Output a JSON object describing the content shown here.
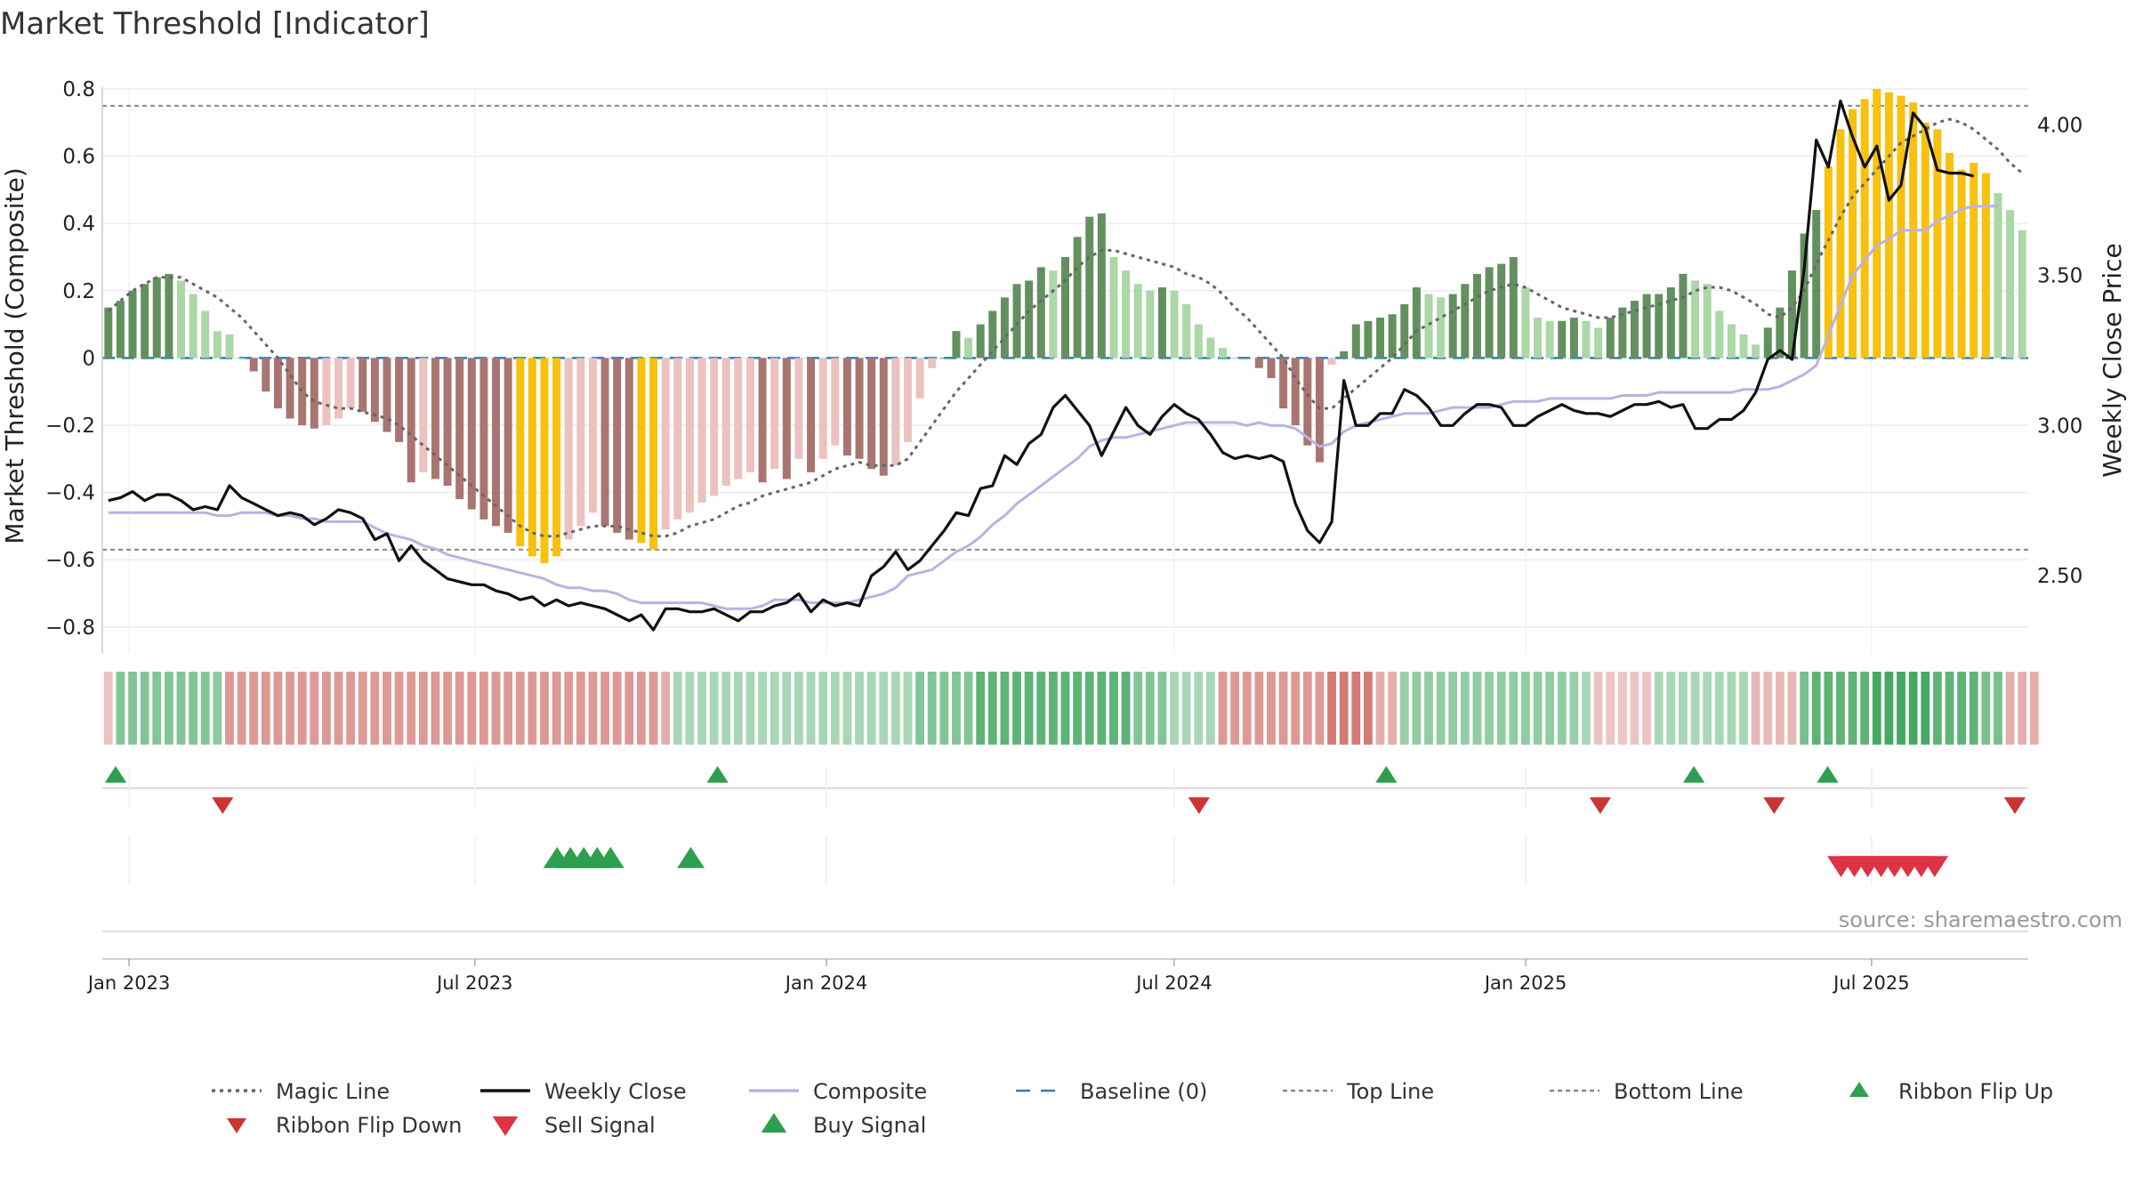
{
  "chart_data": {
    "type": "bar",
    "title": "Market Threshold [Indicator]",
    "ylabel": "Market Threshold (Composite)",
    "y2label": "Weekly Close Price",
    "ylim": [
      -0.88,
      0.8
    ],
    "y2lim": [
      2.24,
      4.12
    ],
    "yticks": [
      -0.8,
      -0.6,
      -0.4,
      -0.2,
      0,
      0.2,
      0.4,
      0.6,
      0.8
    ],
    "ytick_labels": [
      "−0.8",
      "−0.6",
      "−0.4",
      "−0.2",
      "0",
      "0.2",
      "0.4",
      "0.6",
      "0.8"
    ],
    "y2ticks": [
      2.5,
      3.0,
      3.5,
      4.0
    ],
    "y2tick_labels": [
      "2.50",
      "3.00",
      "3.50",
      "4.00"
    ],
    "x_start": "2022-12-18",
    "x_end": "2025-09-21",
    "xticks": [
      "2023-01-01",
      "2023-07-01",
      "2024-01-01",
      "2024-07-01",
      "2025-01-01",
      "2025-07-01"
    ],
    "xtick_labels": [
      "Jan 2023",
      "Jul 2023",
      "Jan 2024",
      "Jul 2024",
      "Jan 2025",
      "Jul 2025"
    ],
    "top_line": 0.75,
    "bottom_line": -0.57,
    "baseline": 0,
    "grid": true,
    "legend_position": "bottom",
    "composite_bars": [
      0.15,
      0.17,
      0.2,
      0.22,
      0.24,
      0.25,
      0.23,
      0.19,
      0.14,
      0.08,
      0.07,
      0.0,
      -0.04,
      -0.1,
      -0.15,
      -0.18,
      -0.2,
      -0.21,
      -0.2,
      -0.18,
      -0.15,
      -0.16,
      -0.19,
      -0.22,
      -0.25,
      -0.37,
      -0.34,
      -0.36,
      -0.38,
      -0.42,
      -0.45,
      -0.48,
      -0.5,
      -0.52,
      -0.56,
      -0.59,
      -0.61,
      -0.59,
      -0.54,
      -0.5,
      -0.46,
      -0.5,
      -0.52,
      -0.54,
      -0.55,
      -0.57,
      -0.51,
      -0.48,
      -0.46,
      -0.43,
      -0.41,
      -0.38,
      -0.36,
      -0.34,
      -0.37,
      -0.33,
      -0.36,
      -0.3,
      -0.34,
      -0.3,
      -0.26,
      -0.29,
      -0.3,
      -0.33,
      -0.35,
      -0.32,
      -0.25,
      -0.12,
      -0.03,
      0.0,
      0.08,
      0.06,
      0.1,
      0.14,
      0.18,
      0.22,
      0.23,
      0.27,
      0.26,
      0.3,
      0.36,
      0.42,
      0.43,
      0.3,
      0.26,
      0.22,
      0.2,
      0.21,
      0.2,
      0.16,
      0.1,
      0.06,
      0.03,
      0.0,
      0.0,
      -0.03,
      -0.06,
      -0.15,
      -0.2,
      -0.26,
      -0.31,
      -0.02,
      0.02,
      0.1,
      0.11,
      0.12,
      0.13,
      0.16,
      0.21,
      0.19,
      0.18,
      0.19,
      0.22,
      0.25,
      0.27,
      0.28,
      0.3,
      0.21,
      0.12,
      0.11,
      0.11,
      0.12,
      0.11,
      0.09,
      0.12,
      0.15,
      0.17,
      0.19,
      0.19,
      0.21,
      0.25,
      0.23,
      0.22,
      0.14,
      0.1,
      0.07,
      0.04,
      0.09,
      0.15,
      0.26,
      0.37,
      0.44,
      0.57,
      0.68,
      0.74,
      0.77,
      0.8,
      0.79,
      0.78,
      0.76,
      0.7,
      0.68,
      0.61,
      0.56,
      0.58,
      0.55,
      0.49,
      0.44,
      0.38
    ],
    "weekly_close": [
      2.75,
      2.76,
      2.78,
      2.75,
      2.77,
      2.77,
      2.75,
      2.72,
      2.73,
      2.72,
      2.8,
      2.76,
      2.74,
      2.72,
      2.7,
      2.71,
      2.7,
      2.67,
      2.69,
      2.72,
      2.71,
      2.69,
      2.62,
      2.64,
      2.55,
      2.6,
      2.55,
      2.52,
      2.49,
      2.48,
      2.47,
      2.47,
      2.45,
      2.44,
      2.42,
      2.43,
      2.4,
      2.42,
      2.4,
      2.41,
      2.4,
      2.39,
      2.37,
      2.35,
      2.37,
      2.32,
      2.39,
      2.39,
      2.38,
      2.38,
      2.39,
      2.37,
      2.35,
      2.38,
      2.38,
      2.4,
      2.41,
      2.44,
      2.38,
      2.42,
      2.4,
      2.41,
      2.4,
      2.5,
      2.53,
      2.58,
      2.52,
      2.55,
      2.6,
      2.65,
      2.71,
      2.7,
      2.79,
      2.8,
      2.9,
      2.87,
      2.94,
      2.97,
      3.06,
      3.1,
      3.05,
      3.0,
      2.9,
      2.98,
      3.06,
      3.0,
      2.97,
      3.03,
      3.07,
      3.04,
      3.02,
      2.97,
      2.91,
      2.89,
      2.9,
      2.89,
      2.9,
      2.88,
      2.74,
      2.65,
      2.61,
      2.68,
      3.15,
      3.0,
      3.0,
      3.04,
      3.04,
      3.12,
      3.1,
      3.06,
      3.0,
      3.0,
      3.04,
      3.07,
      3.07,
      3.06,
      3.0,
      3.0,
      3.03,
      3.05,
      3.07,
      3.05,
      3.04,
      3.04,
      3.03,
      3.05,
      3.07,
      3.07,
      3.08,
      3.06,
      3.07,
      2.99,
      2.99,
      3.02,
      3.02,
      3.05,
      3.11,
      3.22,
      3.25,
      3.22,
      3.52,
      3.95,
      3.86,
      4.08,
      3.96,
      3.86,
      3.93,
      3.75,
      3.8,
      4.04,
      3.99,
      3.85,
      3.84,
      3.84,
      3.83
    ],
    "composite_line": [
      2.71,
      2.71,
      2.71,
      2.71,
      2.71,
      2.71,
      2.71,
      2.71,
      2.71,
      2.7,
      2.7,
      2.71,
      2.71,
      2.71,
      2.7,
      2.7,
      2.69,
      2.69,
      2.68,
      2.68,
      2.68,
      2.68,
      2.66,
      2.64,
      2.63,
      2.62,
      2.6,
      2.59,
      2.57,
      2.56,
      2.55,
      2.54,
      2.53,
      2.52,
      2.51,
      2.5,
      2.49,
      2.47,
      2.46,
      2.46,
      2.45,
      2.45,
      2.44,
      2.42,
      2.41,
      2.41,
      2.41,
      2.41,
      2.41,
      2.41,
      2.4,
      2.39,
      2.39,
      2.39,
      2.4,
      2.42,
      2.42,
      2.42,
      2.41,
      2.41,
      2.41,
      2.41,
      2.42,
      2.43,
      2.44,
      2.46,
      2.5,
      2.51,
      2.52,
      2.55,
      2.58,
      2.6,
      2.63,
      2.67,
      2.7,
      2.74,
      2.77,
      2.8,
      2.83,
      2.86,
      2.89,
      2.93,
      2.95,
      2.96,
      2.96,
      2.97,
      2.98,
      2.99,
      3.0,
      3.01,
      3.01,
      3.01,
      3.01,
      3.01,
      3.0,
      3.01,
      3.0,
      3.0,
      2.99,
      2.96,
      2.93,
      2.94,
      2.98,
      3.0,
      3.01,
      3.02,
      3.03,
      3.04,
      3.04,
      3.04,
      3.05,
      3.06,
      3.06,
      3.06,
      3.06,
      3.07,
      3.08,
      3.08,
      3.08,
      3.09,
      3.09,
      3.09,
      3.09,
      3.09,
      3.09,
      3.1,
      3.1,
      3.1,
      3.11,
      3.11,
      3.11,
      3.11,
      3.11,
      3.11,
      3.11,
      3.12,
      3.12,
      3.12,
      3.13,
      3.15,
      3.17,
      3.2,
      3.3,
      3.4,
      3.5,
      3.55,
      3.6,
      3.62,
      3.65,
      3.65,
      3.65,
      3.68,
      3.7,
      3.72,
      3.73,
      3.73,
      3.73
    ],
    "magic_line": [
      0.14,
      0.17,
      0.2,
      0.22,
      0.24,
      0.24,
      0.24,
      0.22,
      0.2,
      0.18,
      0.15,
      0.12,
      0.08,
      0.04,
      0.0,
      -0.05,
      -0.1,
      -0.13,
      -0.14,
      -0.15,
      -0.15,
      -0.16,
      -0.17,
      -0.18,
      -0.2,
      -0.23,
      -0.26,
      -0.29,
      -0.32,
      -0.35,
      -0.38,
      -0.41,
      -0.44,
      -0.47,
      -0.5,
      -0.52,
      -0.53,
      -0.53,
      -0.52,
      -0.51,
      -0.5,
      -0.5,
      -0.5,
      -0.51,
      -0.52,
      -0.53,
      -0.53,
      -0.52,
      -0.5,
      -0.49,
      -0.48,
      -0.46,
      -0.44,
      -0.43,
      -0.41,
      -0.4,
      -0.39,
      -0.38,
      -0.37,
      -0.35,
      -0.33,
      -0.32,
      -0.31,
      -0.32,
      -0.32,
      -0.32,
      -0.3,
      -0.25,
      -0.2,
      -0.15,
      -0.1,
      -0.06,
      -0.02,
      0.02,
      0.06,
      0.1,
      0.14,
      0.17,
      0.2,
      0.23,
      0.27,
      0.3,
      0.32,
      0.32,
      0.31,
      0.3,
      0.29,
      0.28,
      0.27,
      0.25,
      0.24,
      0.22,
      0.19,
      0.15,
      0.12,
      0.08,
      0.04,
      0.0,
      -0.06,
      -0.11,
      -0.15,
      -0.15,
      -0.12,
      -0.09,
      -0.06,
      -0.03,
      0.0,
      0.04,
      0.08,
      0.1,
      0.12,
      0.14,
      0.16,
      0.18,
      0.2,
      0.21,
      0.22,
      0.21,
      0.19,
      0.17,
      0.15,
      0.14,
      0.13,
      0.12,
      0.12,
      0.13,
      0.14,
      0.15,
      0.16,
      0.17,
      0.18,
      0.2,
      0.21,
      0.21,
      0.2,
      0.18,
      0.16,
      0.13,
      0.12,
      0.15,
      0.2,
      0.28,
      0.35,
      0.42,
      0.48,
      0.52,
      0.56,
      0.6,
      0.64,
      0.66,
      0.68,
      0.7,
      0.71,
      0.7,
      0.68,
      0.65,
      0.62,
      0.58,
      0.55
    ],
    "ribbon": [
      -0.22,
      0.55,
      0.55,
      0.55,
      0.55,
      0.55,
      0.55,
      0.55,
      0.55,
      0.48,
      -0.55,
      -0.55,
      -0.55,
      -0.55,
      -0.55,
      -0.55,
      -0.55,
      -0.55,
      -0.55,
      -0.55,
      -0.55,
      -0.55,
      -0.55,
      -0.55,
      -0.55,
      -0.55,
      -0.55,
      -0.55,
      -0.55,
      -0.55,
      -0.55,
      -0.55,
      -0.55,
      -0.55,
      -0.55,
      -0.55,
      -0.55,
      -0.55,
      -0.55,
      -0.55,
      -0.55,
      -0.55,
      -0.55,
      -0.55,
      -0.55,
      -0.55,
      -0.38,
      0.3,
      0.3,
      0.3,
      0.3,
      0.3,
      0.3,
      0.3,
      0.3,
      0.3,
      0.3,
      0.3,
      0.3,
      0.3,
      0.3,
      0.3,
      0.3,
      0.3,
      0.3,
      0.3,
      0.3,
      0.55,
      0.55,
      0.55,
      0.55,
      0.55,
      0.8,
      0.8,
      0.8,
      0.8,
      0.8,
      0.8,
      0.8,
      0.8,
      0.8,
      0.8,
      0.8,
      0.8,
      0.8,
      0.55,
      0.55,
      0.55,
      0.3,
      0.3,
      0.3,
      0.3,
      -0.55,
      -0.55,
      -0.55,
      -0.55,
      -0.55,
      -0.55,
      -0.55,
      -0.55,
      -0.55,
      -0.8,
      -0.8,
      -0.8,
      -0.8,
      -0.38,
      -0.38,
      0.4,
      0.45,
      0.45,
      0.45,
      0.45,
      0.45,
      0.45,
      0.45,
      0.45,
      0.45,
      0.45,
      0.45,
      0.45,
      0.45,
      0.4,
      0.3,
      -0.2,
      -0.2,
      -0.2,
      -0.2,
      -0.2,
      0.3,
      0.3,
      0.3,
      0.3,
      0.3,
      0.3,
      0.3,
      0.3,
      -0.3,
      -0.3,
      -0.3,
      -0.3,
      0.62,
      0.8,
      0.8,
      0.8,
      0.8,
      0.8,
      0.95,
      0.95,
      0.95,
      0.95,
      0.95,
      0.8,
      0.8,
      0.8,
      0.8,
      0.62,
      0.62,
      -0.38,
      -0.38,
      -0.38
    ],
    "ribbon_flip_up": [
      "2022-12-25",
      "2023-11-05",
      "2024-10-20",
      "2025-03-30",
      "2025-06-08"
    ],
    "ribbon_flip_down": [
      "2023-02-19",
      "2024-07-14",
      "2025-02-09",
      "2025-05-11",
      "2025-09-14"
    ],
    "buy_signal": [
      "2023-08-13",
      "2023-08-20",
      "2023-08-27",
      "2023-09-03",
      "2023-09-10",
      "2023-10-22"
    ],
    "sell_signal": [
      "2025-06-15",
      "2025-06-22",
      "2025-06-29",
      "2025-07-06",
      "2025-07-13",
      "2025-07-20",
      "2025-07-27",
      "2025-08-03"
    ],
    "series": [
      {
        "name": "Magic Line",
        "color": "#666666",
        "style": "dotted"
      },
      {
        "name": "Weekly Close",
        "color": "#111111",
        "style": "solid"
      },
      {
        "name": "Composite",
        "color": "#b9b3e3",
        "style": "solid"
      },
      {
        "name": "Baseline (0)",
        "color": "#2f7fb0",
        "style": "dashed"
      },
      {
        "name": "Top Line",
        "color": "#888888",
        "style": "dashed"
      },
      {
        "name": "Bottom Line",
        "color": "#888888",
        "style": "dashed"
      },
      {
        "name": "Ribbon Flip Up",
        "color": "#2e9e4f",
        "style": "marker-up"
      },
      {
        "name": "Ribbon Flip Down",
        "color": "#cc3333",
        "style": "marker-down"
      },
      {
        "name": "Sell Signal",
        "color": "#dd3344",
        "style": "marker-down"
      },
      {
        "name": "Buy Signal",
        "color": "#2e9e4f",
        "style": "marker-up"
      }
    ],
    "colors": {
      "pos_light": "#acd7a6",
      "pos_dark": "#63905f",
      "neg_light": "#ebc2bf",
      "neg_dark": "#a97571",
      "extreme": "#f7c10d",
      "ribbon_pos_base": "#2e9e4f",
      "ribbon_neg_base": "#c85450"
    },
    "source": "source: sharemaestro.com"
  }
}
